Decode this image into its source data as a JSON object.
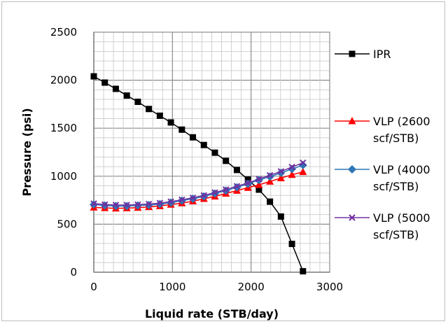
{
  "chart_data": {
    "type": "line",
    "title": "",
    "xlabel": "Liquid rate (STB/day)",
    "ylabel": "Pressure (psi)",
    "xlim": [
      0,
      3000
    ],
    "ylim": [
      0,
      2500
    ],
    "x_ticks": [
      "0",
      "1000",
      "2000",
      "3000"
    ],
    "y_ticks": [
      "0",
      "500",
      "1000",
      "1500",
      "2000",
      "2500"
    ],
    "grid": true,
    "legend_position": "right",
    "series": [
      {
        "name": "IPR",
        "name_lines": [
          "IPR"
        ],
        "color": "#000000",
        "marker": "square",
        "x": [
          0,
          140,
          280,
          420,
          560,
          700,
          840,
          980,
          1120,
          1260,
          1400,
          1540,
          1680,
          1820,
          1960,
          2100,
          2240,
          2380,
          2520,
          2660
        ],
        "y": [
          2040,
          1975,
          1910,
          1840,
          1775,
          1700,
          1630,
          1560,
          1485,
          1405,
          1325,
          1245,
          1160,
          1065,
          965,
          860,
          735,
          580,
          295,
          10
        ]
      },
      {
        "name": "VLP (2600 scf/STB)",
        "name_lines": [
          "VLP (2600",
          "scf/STB)"
        ],
        "color": "#ff0000",
        "marker": "triangle",
        "x": [
          0,
          140,
          280,
          420,
          560,
          700,
          840,
          980,
          1120,
          1260,
          1400,
          1540,
          1680,
          1820,
          1960,
          2100,
          2240,
          2380,
          2520,
          2660
        ],
        "y": [
          675,
          670,
          665,
          668,
          672,
          680,
          690,
          705,
          720,
          740,
          765,
          790,
          820,
          850,
          880,
          910,
          945,
          980,
          1015,
          1045
        ]
      },
      {
        "name": "VLP (4000 scf/STB)",
        "name_lines": [
          "VLP (4000",
          "scf/STB)"
        ],
        "color": "#2e75b6",
        "marker": "diamond",
        "x": [
          0,
          140,
          280,
          420,
          560,
          700,
          840,
          980,
          1120,
          1260,
          1400,
          1540,
          1680,
          1820,
          1960,
          2100,
          2240,
          2380,
          2520,
          2660
        ],
        "y": [
          705,
          695,
          690,
          690,
          695,
          700,
          710,
          725,
          745,
          765,
          790,
          820,
          850,
          885,
          920,
          960,
          995,
          1035,
          1075,
          1115
        ]
      },
      {
        "name": "VLP (5000 scf/STB)",
        "name_lines": [
          "VLP (5000",
          "scf/STB)"
        ],
        "color": "#7030a0",
        "marker": "x",
        "x": [
          0,
          140,
          280,
          420,
          560,
          700,
          840,
          980,
          1120,
          1260,
          1400,
          1540,
          1680,
          1820,
          1960,
          2100,
          2240,
          2380,
          2520,
          2660
        ],
        "y": [
          715,
          705,
          700,
          700,
          705,
          710,
          720,
          735,
          755,
          775,
          800,
          830,
          860,
          895,
          930,
          970,
          1010,
          1050,
          1095,
          1140
        ]
      }
    ]
  }
}
